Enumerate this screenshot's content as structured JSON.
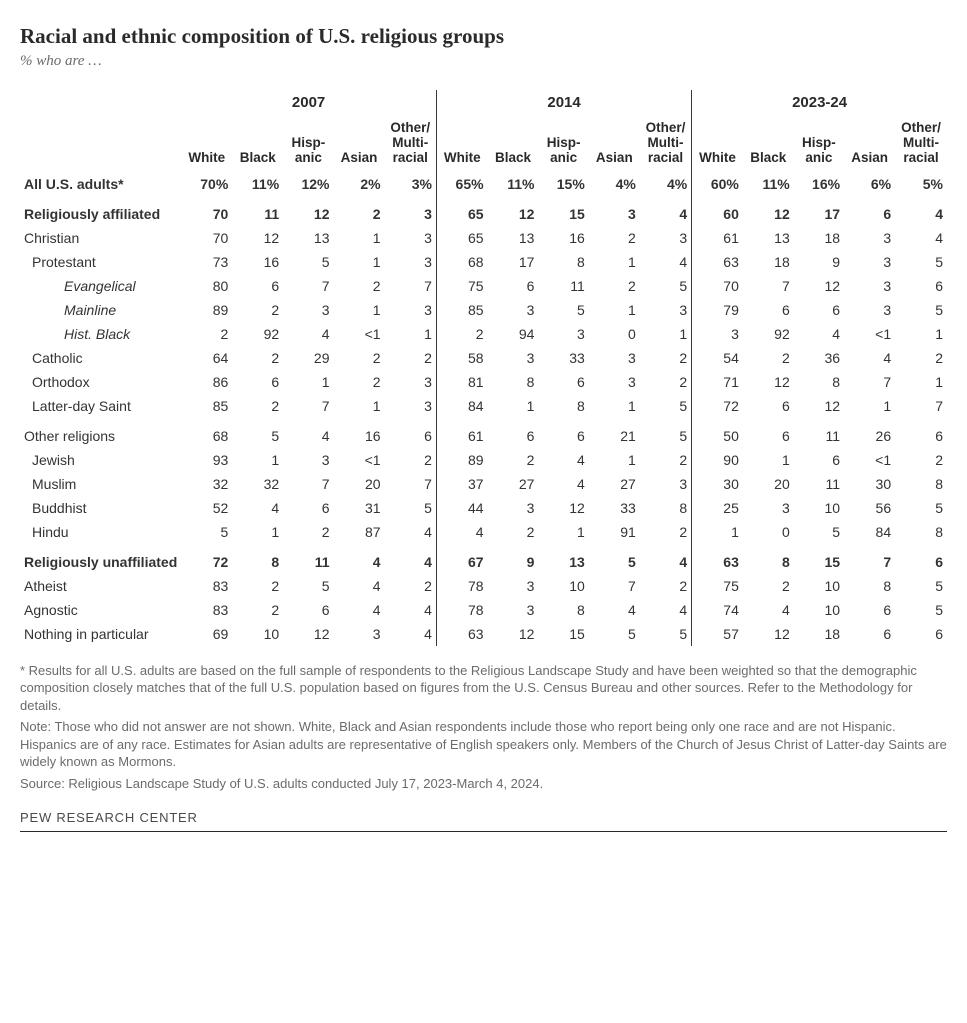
{
  "title": "Racial and ethnic composition of U.S. religious groups",
  "subtitle": "% who are …",
  "table": {
    "type": "table",
    "year_headers": [
      "2007",
      "2014",
      "2023-24"
    ],
    "sub_headers": [
      "White",
      "Black",
      "Hisp-\nanic",
      "Asian",
      "Other/\nMulti-\nracial"
    ],
    "rows": [
      {
        "label": "All U.S. adults*",
        "cls": "bold",
        "values": [
          "70%",
          "11%",
          "12%",
          "2%",
          "3%",
          "65%",
          "11%",
          "15%",
          "4%",
          "4%",
          "60%",
          "11%",
          "16%",
          "6%",
          "5%"
        ]
      },
      {
        "label": "Religiously affiliated",
        "cls": "bold section-gap",
        "values": [
          "70",
          "11",
          "12",
          "2",
          "3",
          "65",
          "12",
          "15",
          "3",
          "4",
          "60",
          "12",
          "17",
          "6",
          "4"
        ]
      },
      {
        "label": "Christian",
        "cls": "",
        "values": [
          "70",
          "12",
          "13",
          "1",
          "3",
          "65",
          "13",
          "16",
          "2",
          "3",
          "61",
          "13",
          "18",
          "3",
          "4"
        ]
      },
      {
        "label": "Protestant",
        "cls": "indent-1",
        "values": [
          "73",
          "16",
          "5",
          "1",
          "3",
          "68",
          "17",
          "8",
          "1",
          "4",
          "63",
          "18",
          "9",
          "3",
          "5"
        ]
      },
      {
        "label": "Evangelical",
        "cls": "indent-3",
        "values": [
          "80",
          "6",
          "7",
          "2",
          "7",
          "75",
          "6",
          "11",
          "2",
          "5",
          "70",
          "7",
          "12",
          "3",
          "6"
        ]
      },
      {
        "label": "Mainline",
        "cls": "indent-3",
        "values": [
          "89",
          "2",
          "3",
          "1",
          "3",
          "85",
          "3",
          "5",
          "1",
          "3",
          "79",
          "6",
          "6",
          "3",
          "5"
        ]
      },
      {
        "label": "Hist. Black",
        "cls": "indent-3",
        "values": [
          "2",
          "92",
          "4",
          "<1",
          "1",
          "2",
          "94",
          "3",
          "0",
          "1",
          "3",
          "92",
          "4",
          "<1",
          "1"
        ]
      },
      {
        "label": "Catholic",
        "cls": "indent-1",
        "values": [
          "64",
          "2",
          "29",
          "2",
          "2",
          "58",
          "3",
          "33",
          "3",
          "2",
          "54",
          "2",
          "36",
          "4",
          "2"
        ]
      },
      {
        "label": "Orthodox",
        "cls": "indent-1",
        "values": [
          "86",
          "6",
          "1",
          "2",
          "3",
          "81",
          "8",
          "6",
          "3",
          "2",
          "71",
          "12",
          "8",
          "7",
          "1"
        ]
      },
      {
        "label": "Latter-day Saint",
        "cls": "indent-1",
        "values": [
          "85",
          "2",
          "7",
          "1",
          "3",
          "84",
          "1",
          "8",
          "1",
          "5",
          "72",
          "6",
          "12",
          "1",
          "7"
        ]
      },
      {
        "label": "Other religions",
        "cls": "section-gap",
        "values": [
          "68",
          "5",
          "4",
          "16",
          "6",
          "61",
          "6",
          "6",
          "21",
          "5",
          "50",
          "6",
          "11",
          "26",
          "6"
        ]
      },
      {
        "label": "Jewish",
        "cls": "indent-1",
        "values": [
          "93",
          "1",
          "3",
          "<1",
          "2",
          "89",
          "2",
          "4",
          "1",
          "2",
          "90",
          "1",
          "6",
          "<1",
          "2"
        ]
      },
      {
        "label": "Muslim",
        "cls": "indent-1",
        "values": [
          "32",
          "32",
          "7",
          "20",
          "7",
          "37",
          "27",
          "4",
          "27",
          "3",
          "30",
          "20",
          "11",
          "30",
          "8"
        ]
      },
      {
        "label": "Buddhist",
        "cls": "indent-1",
        "values": [
          "52",
          "4",
          "6",
          "31",
          "5",
          "44",
          "3",
          "12",
          "33",
          "8",
          "25",
          "3",
          "10",
          "56",
          "5"
        ]
      },
      {
        "label": "Hindu",
        "cls": "indent-1",
        "values": [
          "5",
          "1",
          "2",
          "87",
          "4",
          "4",
          "2",
          "1",
          "91",
          "2",
          "1",
          "0",
          "5",
          "84",
          "8"
        ]
      },
      {
        "label": "Religiously unaffiliated",
        "cls": "bold section-gap",
        "values": [
          "72",
          "8",
          "11",
          "4",
          "4",
          "67",
          "9",
          "13",
          "5",
          "4",
          "63",
          "8",
          "15",
          "7",
          "6"
        ]
      },
      {
        "label": "Atheist",
        "cls": "",
        "values": [
          "83",
          "2",
          "5",
          "4",
          "2",
          "78",
          "3",
          "10",
          "7",
          "2",
          "75",
          "2",
          "10",
          "8",
          "5"
        ]
      },
      {
        "label": "Agnostic",
        "cls": "",
        "values": [
          "83",
          "2",
          "6",
          "4",
          "4",
          "78",
          "3",
          "8",
          "4",
          "4",
          "74",
          "4",
          "10",
          "6",
          "5"
        ]
      },
      {
        "label": "Nothing in particular",
        "cls": "",
        "values": [
          "69",
          "10",
          "12",
          "3",
          "4",
          "63",
          "12",
          "15",
          "5",
          "5",
          "57",
          "12",
          "18",
          "6",
          "6"
        ]
      }
    ]
  },
  "footnotes": [
    "* Results for all U.S. adults are based on the full sample of respondents to the Religious Landscape Study and have been weighted so that the demographic composition closely matches that of the full U.S. population based on figures from the U.S. Census Bureau and other sources. Refer to the Methodology for details.",
    "Note: Those who did not answer are not shown. White, Black and Asian respondents include those who report being only one race and are not Hispanic. Hispanics are of any race. Estimates for Asian adults are representative of English speakers only. Members of the Church of Jesus Christ of Latter-day Saints are widely known as Mormons.",
    "Source: Religious Landscape Study of U.S. adults conducted July 17, 2023-March 4, 2024."
  ],
  "attribution": "PEW RESEARCH CENTER"
}
